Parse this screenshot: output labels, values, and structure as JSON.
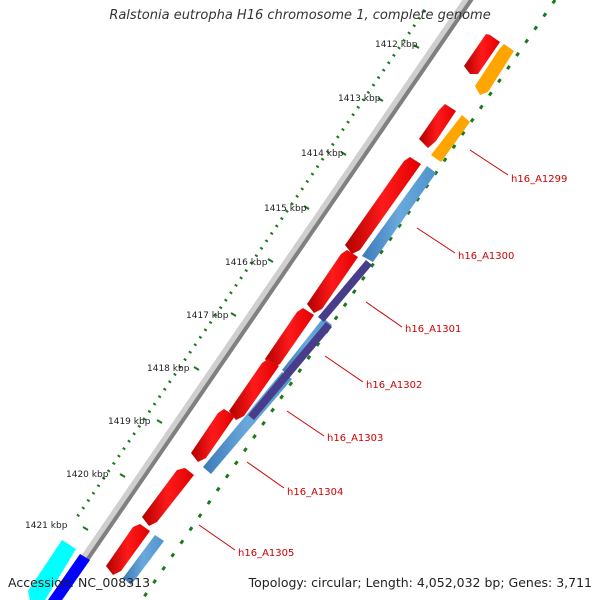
{
  "title": "Ralstonia eutropha H16 chromosome 1, complete genome",
  "footer": {
    "accession_label": "Accession:",
    "accession": "NC_008313",
    "topology": "Topology: circular; Length: 4,052,032 bp; Genes: 3,711"
  },
  "ticks": [
    "1412 kbp",
    "1413 kbp",
    "1414 kbp",
    "1415 kbp",
    "1416 kbp",
    "1417 kbp",
    "1418 kbp",
    "1419 kbp",
    "1420 kbp",
    "1421 kbp"
  ],
  "gene_labels": [
    "h16_A1299",
    "h16_A1300",
    "h16_A1301",
    "h16_A1302",
    "h16_A1303",
    "h16_A1304",
    "h16_A1305"
  ],
  "colors": {
    "backbone": "#808080",
    "cds": "#ff0000",
    "cds_alt": "#ffa500",
    "blue_feature": "#4f94cd",
    "purple_feature": "#483d8b",
    "cyan_feature": "#00ffff",
    "dark_blue_feature": "#0000ff",
    "gc_dots": "#1a7a1a",
    "label_red": "#cc0000"
  }
}
